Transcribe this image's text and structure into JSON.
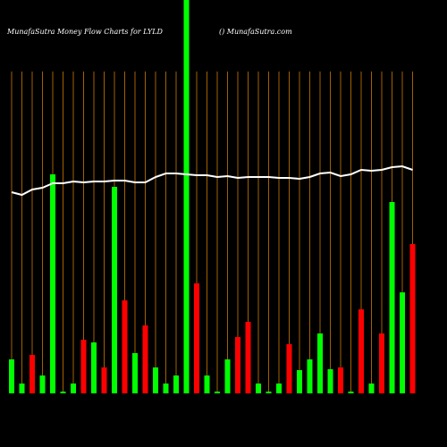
{
  "chart_data": {
    "type": "bar",
    "title": "MunafaSutra  Money Flow  Charts for LYLD",
    "subtitle": "() MunafaSutra.com",
    "categories": [
      null,
      null,
      null,
      null,
      null,
      null,
      null,
      null,
      null,
      null,
      null,
      null,
      null,
      null,
      null,
      null,
      null,
      null,
      null,
      null,
      null,
      null,
      null,
      null,
      null,
      null,
      null,
      null,
      null,
      null,
      null,
      null,
      null,
      null,
      null,
      null,
      null,
      null,
      null,
      null
    ],
    "values": [
      38,
      11,
      43,
      20,
      245,
      2,
      11,
      60,
      57,
      29,
      231,
      104,
      45,
      76,
      29,
      11,
      20,
      440,
      123,
      20,
      2,
      38,
      63,
      80,
      11,
      2,
      11,
      55,
      26,
      38,
      67,
      27,
      29,
      2,
      94,
      11,
      67,
      214,
      113,
      167
    ],
    "colors": [
      "#00ff00",
      "#00ff00",
      "#ff0000",
      "#00ff00",
      "#00ff00",
      "#00ff00",
      "#00ff00",
      "#ff0000",
      "#00ff00",
      "#ff0000",
      "#00ff00",
      "#ff0000",
      "#00ff00",
      "#ff0000",
      "#00ff00",
      "#00ff00",
      "#00ff00",
      "#00ff00",
      "#ff0000",
      "#00ff00",
      "#00ff00",
      "#00ff00",
      "#ff0000",
      "#ff0000",
      "#00ff00",
      "#00ff00",
      "#00ff00",
      "#ff0000",
      "#00ff00",
      "#00ff00",
      "#00ff00",
      "#00ff00",
      "#ff0000",
      "#00ff00",
      "#ff0000",
      "#00ff00",
      "#ff0000",
      "#00ff00",
      "#00ff00",
      "#ff0000"
    ],
    "line": {
      "color": "#ffffff",
      "values": [
        225,
        222,
        228,
        230,
        235,
        235,
        237,
        236,
        237,
        237,
        238,
        238,
        236,
        236,
        242,
        246,
        246,
        245,
        244,
        244,
        242,
        243,
        241,
        242,
        242,
        242,
        241,
        241,
        240,
        242,
        246,
        247,
        243,
        245,
        250,
        249,
        250,
        253,
        254,
        250
      ]
    },
    "ylim": [
      0,
      440
    ],
    "grid_color": "#cc7a00"
  }
}
